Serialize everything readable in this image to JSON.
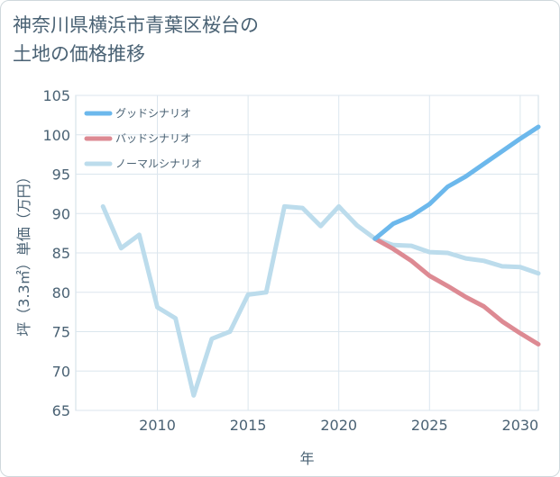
{
  "title": "神奈川県横浜市青葉区桜台の\n土地の価格推移",
  "chart_data": {
    "type": "line",
    "xlabel": "年",
    "ylabel": "坪（3.3㎡）単価（万円）",
    "xlim": [
      2005.5,
      2031
    ],
    "ylim": [
      65,
      105
    ],
    "x_ticks": [
      2010,
      2015,
      2020,
      2025,
      2030
    ],
    "y_ticks": [
      65,
      70,
      75,
      80,
      85,
      90,
      95,
      100,
      105
    ],
    "grid": true,
    "legend_position": "top-left",
    "series": [
      {
        "name": "グッドシナリオ",
        "color": "#6cb8ec",
        "x": [
          2022,
          2023,
          2024,
          2025,
          2026,
          2027,
          2028,
          2029,
          2030,
          2031
        ],
        "y": [
          86.8,
          88.7,
          89.7,
          91.2,
          93.4,
          94.7,
          96.3,
          97.9,
          99.5,
          101.0
        ]
      },
      {
        "name": "バッドシナリオ",
        "color": "#dd8a93",
        "x": [
          2022,
          2023,
          2024,
          2025,
          2026,
          2027,
          2028,
          2029,
          2030,
          2031
        ],
        "y": [
          86.8,
          85.5,
          84.0,
          82.1,
          80.8,
          79.4,
          78.2,
          76.3,
          74.8,
          73.4
        ]
      },
      {
        "name": "ノーマルシナリオ",
        "color": "#bcdcec",
        "x": [
          2007,
          2008,
          2009,
          2010,
          2011,
          2012,
          2013,
          2014,
          2015,
          2016,
          2017,
          2018,
          2019,
          2020,
          2021,
          2022,
          2023,
          2024,
          2025,
          2026,
          2027,
          2028,
          2029,
          2030,
          2031
        ],
        "y": [
          90.9,
          85.6,
          87.3,
          78.1,
          76.7,
          66.9,
          74.1,
          75.0,
          79.7,
          80.0,
          90.9,
          90.7,
          88.4,
          90.9,
          88.5,
          86.8,
          86.0,
          85.9,
          85.1,
          85.0,
          84.3,
          84.0,
          83.3,
          83.2,
          82.4
        ]
      }
    ]
  }
}
